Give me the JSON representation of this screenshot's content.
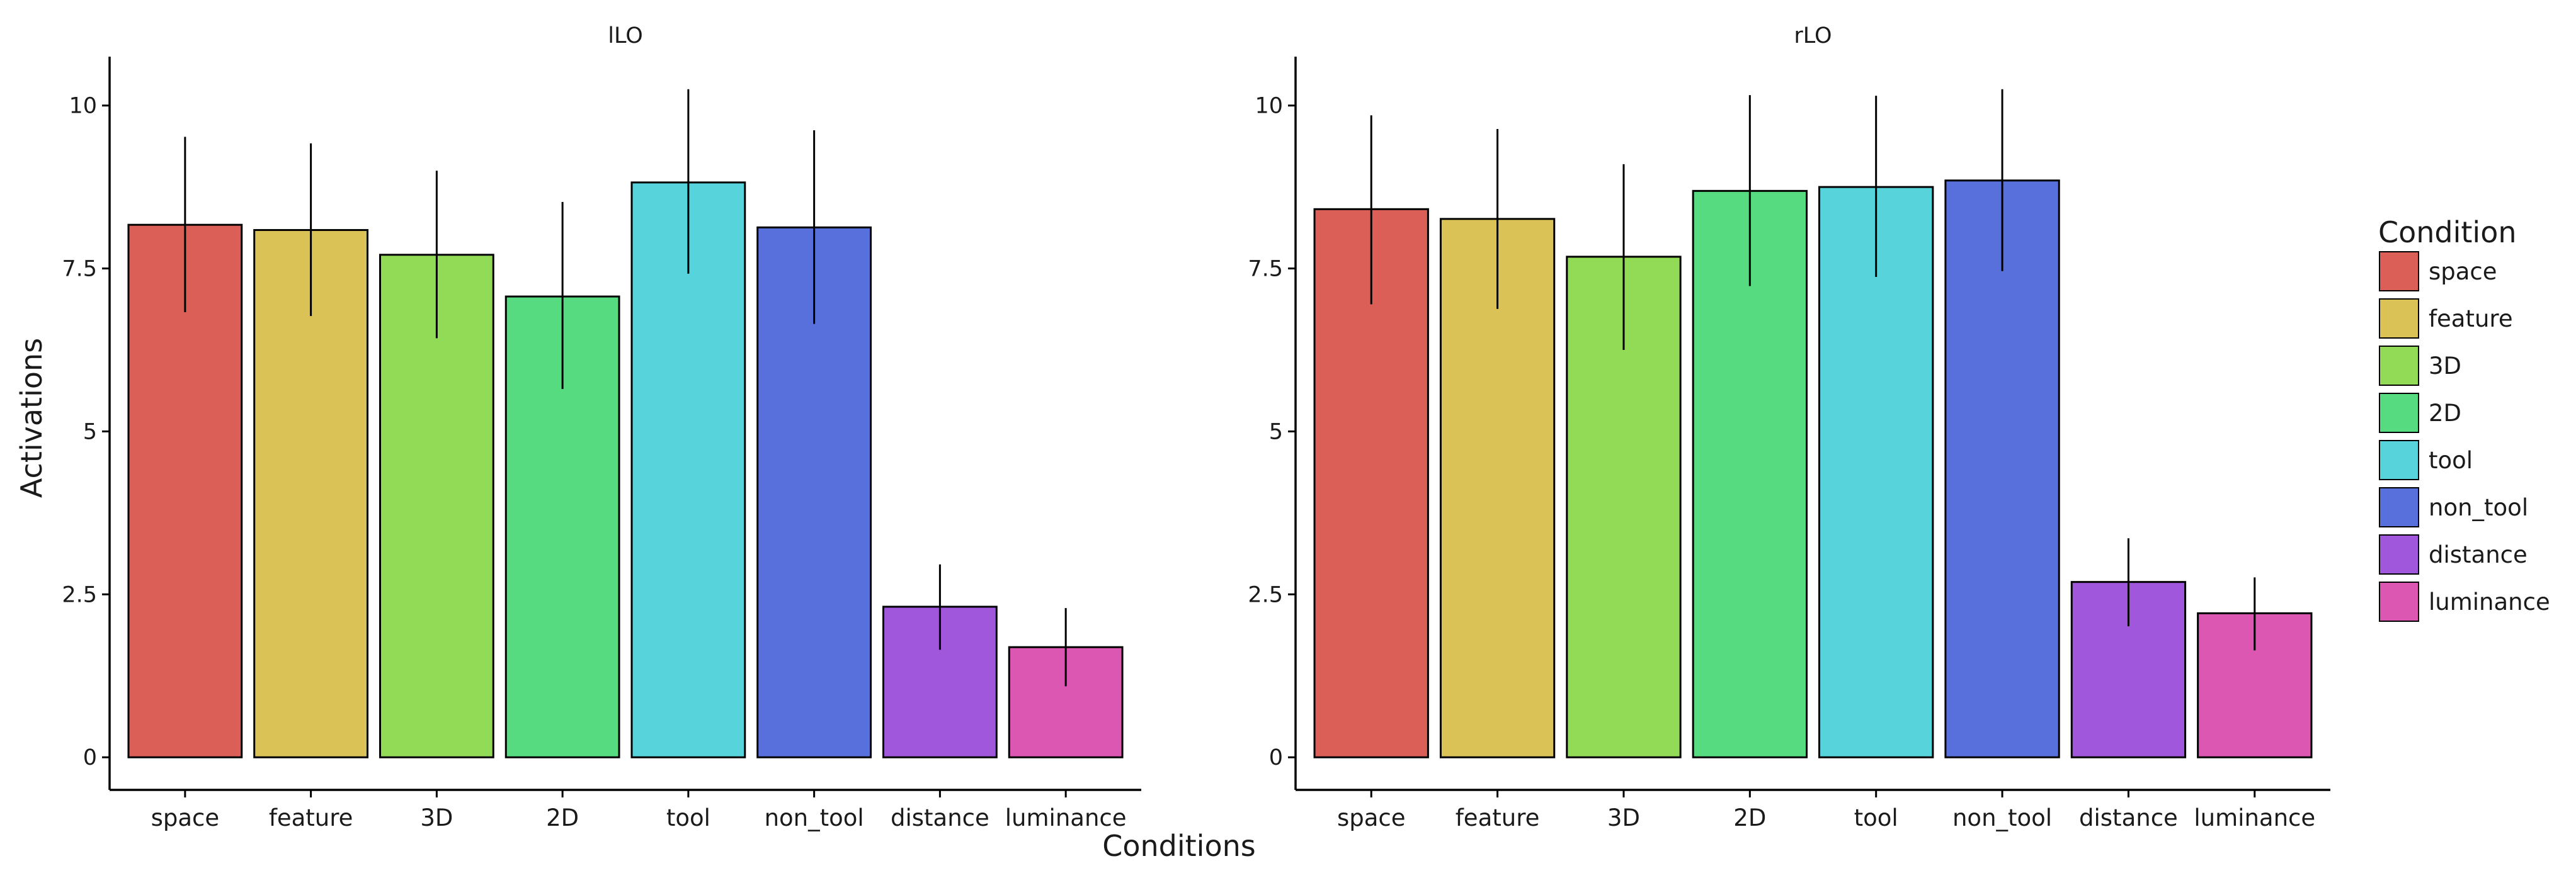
{
  "chart_data": {
    "type": "bar",
    "xlabel": "Conditions",
    "ylabel": "Activations",
    "ylim": [
      -0.5,
      10.75
    ],
    "yticks": [
      0,
      2.5,
      5,
      7.5,
      10
    ],
    "ytick_labels": [
      "0",
      "2.5",
      "5",
      "7.5",
      "10"
    ],
    "grid": false,
    "categories": [
      "space",
      "feature",
      "3D",
      "2D",
      "tool",
      "non_tool",
      "distance",
      "luminance"
    ],
    "colors": [
      "#db5f57",
      "#dbc257",
      "#91db57",
      "#57db80",
      "#57d3db",
      "#5770db",
      "#a157db",
      "#db57b2"
    ],
    "legend": {
      "title": "Condition",
      "position": "right",
      "items": [
        "space",
        "feature",
        "3D",
        "2D",
        "tool",
        "non_tool",
        "distance",
        "luminance"
      ]
    },
    "panels": [
      {
        "title": "lLO",
        "values": [
          8.17,
          8.09,
          7.71,
          7.07,
          8.82,
          8.13,
          2.31,
          1.69
        ],
        "error_low": [
          6.83,
          6.77,
          6.43,
          5.65,
          7.42,
          6.65,
          1.65,
          1.09
        ],
        "error_high": [
          9.52,
          9.42,
          9.0,
          8.52,
          10.25,
          9.62,
          2.96,
          2.29
        ]
      },
      {
        "title": "rLO",
        "values": [
          8.41,
          8.26,
          7.68,
          8.69,
          8.75,
          8.85,
          2.69,
          2.21
        ],
        "error_low": [
          6.95,
          6.88,
          6.25,
          7.23,
          7.37,
          7.46,
          2.01,
          1.64
        ],
        "error_high": [
          9.85,
          9.64,
          9.1,
          10.16,
          10.15,
          10.25,
          3.36,
          2.76
        ]
      }
    ]
  }
}
